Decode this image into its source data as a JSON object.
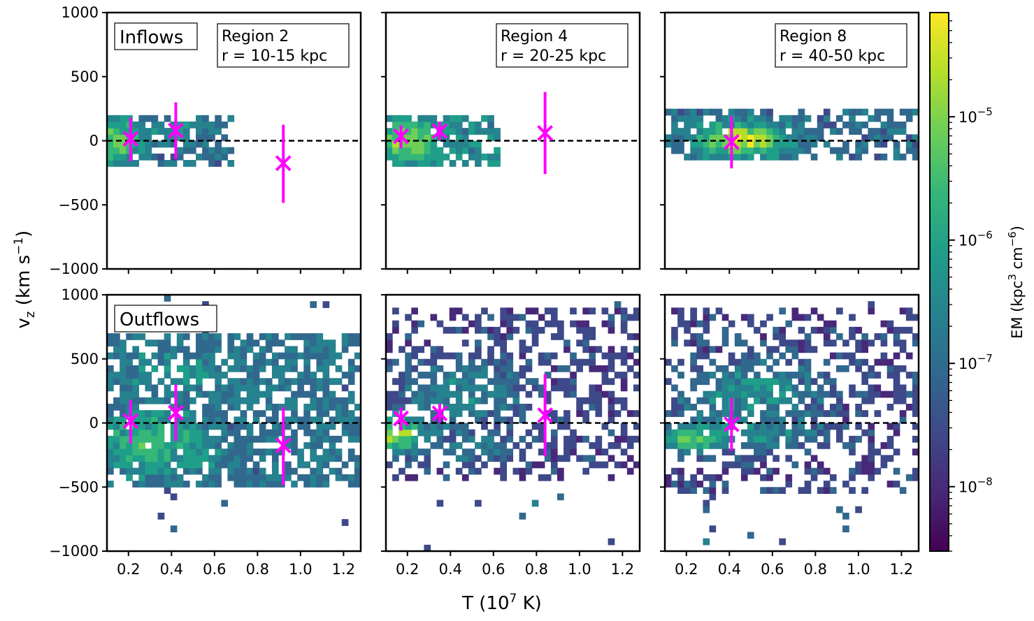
{
  "chart_data": {
    "type": "heatmap",
    "xlabel": "T (10",
    "xlabel_sup": "7",
    "xlabel_end": " K)",
    "ylabel": "v",
    "ylabel_sub": "z",
    "ylabel_mid": " (km s",
    "ylabel_sup": "−1",
    "ylabel_end": ")",
    "xlim": [
      0.1,
      1.28
    ],
    "ylim": [
      -1000,
      1000
    ],
    "xticks": [
      "0.2",
      "0.4",
      "0.6",
      "0.8",
      "1.0",
      "1.2"
    ],
    "yticks": [
      "1000",
      "500",
      "0",
      "−500",
      "−1000"
    ],
    "colorbar": {
      "label": "EM (kpc",
      "label_sup1": "3",
      "label_mid": " cm",
      "label_sup2": "−6",
      "label_end": ")",
      "scale": "log",
      "range": [
        3e-09,
        7e-05
      ],
      "ticks": [
        {
          "value": 1e-05,
          "base": "10",
          "exp": "−5"
        },
        {
          "value": 1e-06,
          "base": "10",
          "exp": "−6"
        },
        {
          "value": 1e-07,
          "base": "10",
          "exp": "−7"
        },
        {
          "value": 1e-08,
          "base": "10",
          "exp": "−8"
        }
      ]
    },
    "row_labels": [
      "Inflows",
      "Outflows"
    ],
    "zero_line": 0,
    "panels": [
      {
        "row": 0,
        "col": 0,
        "region": "Region 2",
        "radius": " r = 10-15 kpc",
        "markers": [
          {
            "T": 0.21,
            "vz": 15,
            "lo": -160,
            "hi": 180
          },
          {
            "T": 0.42,
            "vz": 80,
            "lo": -140,
            "hi": 300
          },
          {
            "T": 0.92,
            "vz": -175,
            "lo": -485,
            "hi": 125
          }
        ]
      },
      {
        "row": 0,
        "col": 1,
        "region": "Region 4",
        "radius": " r = 20-25 kpc",
        "markers": [
          {
            "T": 0.17,
            "vz": 35,
            "lo": -60,
            "hi": 120
          },
          {
            "T": 0.35,
            "vz": 75,
            "lo": 5,
            "hi": 150
          },
          {
            "T": 0.84,
            "vz": 60,
            "lo": -260,
            "hi": 380
          }
        ]
      },
      {
        "row": 0,
        "col": 2,
        "region": "Region 8",
        "radius": " r = 40-50 kpc",
        "markers": [
          {
            "T": 0.41,
            "vz": -10,
            "lo": -215,
            "hi": 195
          }
        ]
      },
      {
        "row": 1,
        "col": 0,
        "markers": [
          {
            "T": 0.21,
            "vz": 15,
            "lo": -160,
            "hi": 180
          },
          {
            "T": 0.42,
            "vz": 80,
            "lo": -140,
            "hi": 300
          },
          {
            "T": 0.92,
            "vz": -175,
            "lo": -485,
            "hi": 125
          }
        ]
      },
      {
        "row": 1,
        "col": 1,
        "markers": [
          {
            "T": 0.17,
            "vz": 35,
            "lo": -60,
            "hi": 120
          },
          {
            "T": 0.35,
            "vz": 75,
            "lo": 5,
            "hi": 150
          },
          {
            "T": 0.84,
            "vz": 60,
            "lo": -260,
            "hi": 380
          }
        ]
      },
      {
        "row": 1,
        "col": 2,
        "markers": [
          {
            "T": 0.41,
            "vz": -10,
            "lo": -215,
            "hi": 195
          }
        ]
      }
    ],
    "colors": {
      "marker": "#ff00ff",
      "zero_line": "#000000",
      "viridis": [
        "#440154",
        "#482878",
        "#3e4989",
        "#31688e",
        "#26828e",
        "#1f9e89",
        "#35b779",
        "#6ece58",
        "#b5de2b",
        "#fde725"
      ]
    }
  }
}
